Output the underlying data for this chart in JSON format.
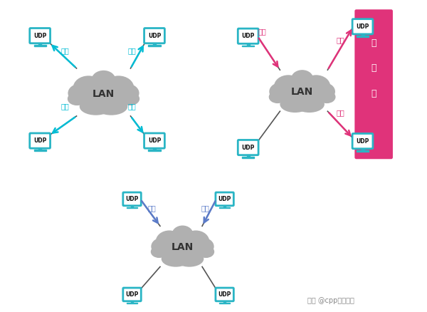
{
  "bg_color": "#ffffff",
  "cloud_color": "#b0b0b0",
  "cloud_edge_color": "#999999",
  "monitor_teal": "#2ab5c5",
  "monitor_dark_teal": "#1a8fa0",
  "monitor_body": "#2ab5c5",
  "udp_text_color": "#000000",
  "broadcast_arrow_color": "#00bcd4",
  "multicast_arrow_color": "#e0337a",
  "unicast_arrow_color": "#5b7bc8",
  "line_color": "#555555",
  "multicast_bg_color": "#e0337a",
  "multicast_group_text_color": "#ffffff",
  "label_broadcast": "广播",
  "label_multicast": "多播",
  "label_unicast": "单播",
  "label_mg1": "多",
  "label_mg2": "播",
  "label_mg3": "组",
  "label_LAN": "LAN",
  "watermark": "知乎 @cpp后端技术",
  "panel_border": "#cccccc"
}
